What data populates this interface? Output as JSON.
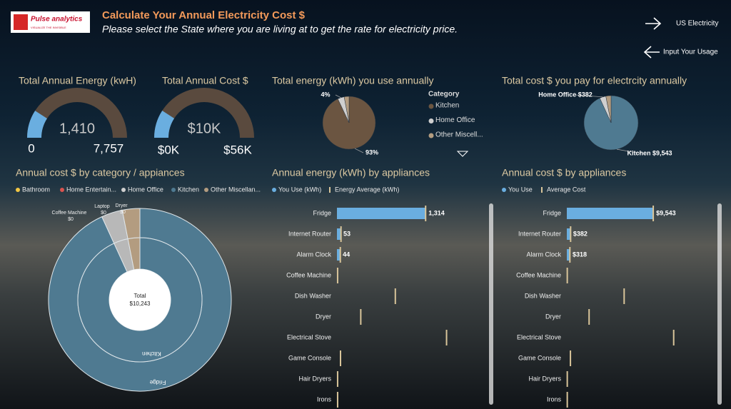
{
  "header": {
    "logo": "Pulse analytics",
    "tagline": "VISUALIZE THE INVISIBLE",
    "title": "Calculate Your Annual Electricity Cost $",
    "subtitle": "Please select the State where you are living at to get the rate for electricity price."
  },
  "nav": [
    {
      "label": "US Electricity"
    },
    {
      "label": "Input Your Usage"
    }
  ],
  "chart_data": [
    {
      "type": "gauge",
      "title": "Total Annual Energy (kwH)",
      "value": 1410,
      "value_label": "1,410",
      "min": 0,
      "max": {
        "value": 7757,
        "label": "7,757"
      },
      "color": "#6aaee0",
      "track_color": "#5a4a3e"
    },
    {
      "type": "gauge",
      "title": "Total Annual Cost $",
      "value": 10243,
      "value_label": "$10K",
      "min": {
        "value": 0,
        "label": "$0K"
      },
      "max": {
        "value": 56000,
        "label": "$56K"
      },
      "color": "#6aaee0",
      "track_color": "#5a4a3e"
    },
    {
      "type": "pie",
      "title": "Total energy (kWh) you use annually",
      "legend_title": "Category",
      "categories": [
        "Kitchen",
        "Home Office",
        "Other Miscell..."
      ],
      "values": [
        93,
        4,
        3
      ],
      "value_labels": [
        "93%",
        "4%",
        null
      ],
      "colors": [
        "#6b5541",
        "#cfcfcf",
        "#b39c80"
      ]
    },
    {
      "type": "pie",
      "title": "Total cost $ you pay for electrcity annually",
      "values": [
        9543,
        382,
        318
      ],
      "value_labels": [
        "Kitchen $9,543",
        "Home Office $382",
        null
      ],
      "colors": [
        "#4f7a91",
        "#cfcfcf",
        "#b39c80"
      ]
    },
    {
      "type": "sunburst",
      "title": "Annual cost $ by category / appiances",
      "legend": [
        {
          "name": "Bathroom",
          "color": "#f2c744"
        },
        {
          "name": "Home Entertain...",
          "color": "#d9534f"
        },
        {
          "name": "Home Office",
          "color": "#cfcfcf"
        },
        {
          "name": "Kitchen",
          "color": "#4f7a91"
        },
        {
          "name": "Other Miscellan...",
          "color": "#b39c80"
        }
      ],
      "inner": {
        "categories": [
          "Kitchen",
          null,
          null
        ],
        "values": [
          9543,
          382,
          318
        ],
        "colors": [
          "#4f7a91",
          "#b8b8b8",
          "#b39c80"
        ]
      },
      "outer": {
        "categories": [
          "Fridge",
          null,
          null,
          "Coffee Machine",
          "Laptop",
          "Dryer"
        ],
        "values": [
          9543,
          382,
          318,
          0,
          0,
          0
        ],
        "value_labels": [
          null,
          null,
          null,
          "$0",
          "$0",
          "$0"
        ],
        "colors": [
          "#4f7a91",
          "#b8b8b8",
          "#b39c80",
          "#b8b8b8",
          "#b8b8b8",
          "#b39c80"
        ]
      },
      "center_title": "Total",
      "center_value": 10243,
      "center_label": "$10,243"
    },
    {
      "type": "bar",
      "title": "Annual energy (kWh) by appliances",
      "categories": [
        "Fridge",
        "Internet Router",
        "Alarm Clock",
        "Coffee Machine",
        "Dish Washer",
        "Dryer",
        "Electrical Stove",
        "Game Console",
        "Hair Dryers",
        "Irons"
      ],
      "xlim": [
        0,
        2200
      ],
      "series": [
        {
          "name": "You Use (kWh)",
          "color": "#6aaee0",
          "values": [
            1314,
            53,
            44,
            0,
            0,
            0,
            0,
            0,
            0,
            0
          ],
          "value_labels": [
            "1,314",
            "53",
            "44",
            null,
            null,
            null,
            null,
            null,
            null,
            null
          ]
        },
        {
          "name": "Energy Average (kWh)",
          "color": "#d9c59a",
          "marker": "line",
          "values": [
            1314,
            60,
            50,
            10,
            865,
            353,
            1624,
            53,
            10,
            10
          ]
        }
      ]
    },
    {
      "type": "bar",
      "title": "Annual cost $ by appliances",
      "categories": [
        "Fridge",
        "Internet Router",
        "Alarm Clock",
        "Coffee Machine",
        "Dish Washer",
        "Dryer",
        "Electrical Stove",
        "Game Console",
        "Hair Dryers",
        "Irons"
      ],
      "xlim": [
        0,
        16000
      ],
      "series": [
        {
          "name": "You Use",
          "color": "#6aaee0",
          "values": [
            9543,
            382,
            318,
            0,
            0,
            0,
            0,
            0,
            0,
            0
          ],
          "value_labels": [
            "$9,543",
            "$382",
            "$318",
            null,
            null,
            null,
            null,
            null,
            null,
            null
          ]
        },
        {
          "name": "Average Cost",
          "color": "#d9c59a",
          "marker": "line",
          "values": [
            9543,
            420,
            340,
            50,
            6330,
            2460,
            11800,
            400,
            50,
            50
          ]
        }
      ]
    }
  ]
}
